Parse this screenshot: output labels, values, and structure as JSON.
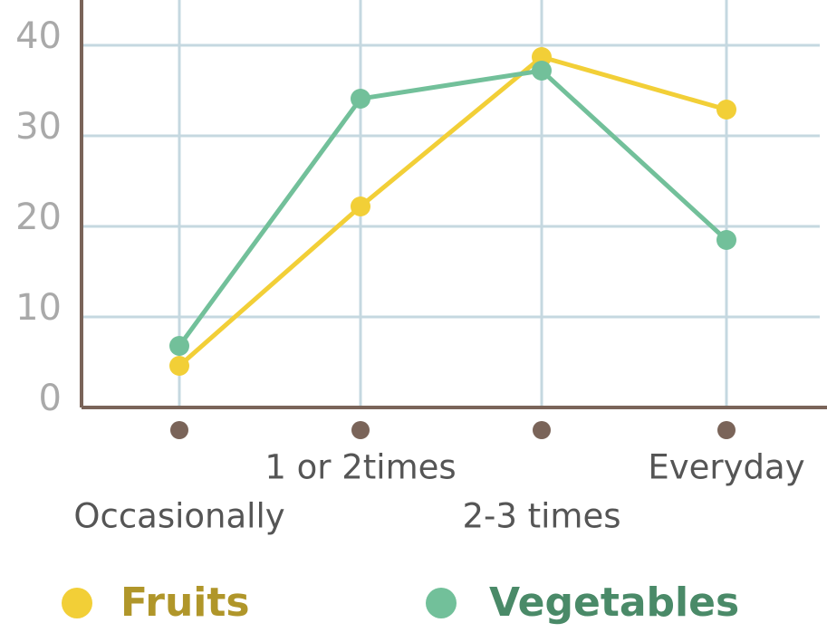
{
  "chart_data": {
    "type": "line",
    "categories": [
      "Occasionally",
      "1 or 2times",
      "2-3 times",
      "Everyday"
    ],
    "series": [
      {
        "name": "Fruits",
        "color": "#f2cf37",
        "values": [
          4.6,
          22.2,
          38.7,
          32.9
        ]
      },
      {
        "name": "Vegetables",
        "color": "#72c09a",
        "values": [
          6.8,
          34.1,
          37.2,
          18.5
        ]
      }
    ],
    "ylim": [
      0,
      45
    ],
    "yticks": [
      0,
      10,
      20,
      30,
      40
    ],
    "grid": true
  }
}
